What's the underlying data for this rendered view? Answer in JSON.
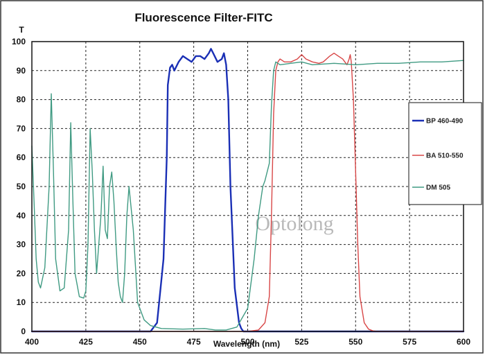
{
  "chart_data": {
    "type": "line",
    "title": "Fluorescence Filter-FITC",
    "xlabel": "Wavelength (nm)",
    "ylabel": "T",
    "xlim": [
      400,
      600
    ],
    "ylim": [
      0,
      100
    ],
    "xticks": [
      "400",
      "425",
      "450",
      "475",
      "500",
      "525",
      "550",
      "575",
      "600"
    ],
    "yticks": [
      "0",
      "10",
      "20",
      "30",
      "40",
      "50",
      "60",
      "70",
      "80",
      "90",
      "100"
    ],
    "grid": true,
    "legend_position": "right",
    "watermark": "Optolong",
    "series": [
      {
        "name": "BP 460-490",
        "color": "#1a2fb5",
        "x": [
          400,
          455,
          458,
          461,
          462.5,
          463,
          464,
          465,
          466,
          468,
          470,
          472,
          474,
          476,
          478,
          480,
          482,
          483,
          484,
          486,
          488,
          489,
          490,
          491,
          492,
          494,
          496,
          497,
          498,
          500,
          600
        ],
        "y": [
          0,
          0,
          3,
          25,
          60,
          85,
          91,
          92,
          90,
          93,
          95,
          94,
          93,
          95,
          95,
          94,
          96,
          97.5,
          96,
          93,
          94,
          96,
          92,
          80,
          50,
          15,
          3,
          1,
          0,
          0,
          0
        ]
      },
      {
        "name": "BA 510-550",
        "color": "#d84646",
        "x": [
          400,
          500,
          505,
          508,
          510,
          511,
          512,
          513,
          514,
          515,
          517,
          520,
          523,
          525,
          527,
          530,
          533,
          535,
          538,
          540,
          542,
          544,
          546,
          547,
          547.5,
          548,
          549,
          550,
          551,
          552,
          554,
          556,
          558,
          560,
          600
        ],
        "y": [
          0,
          0,
          0.5,
          3,
          12,
          40,
          75,
          90,
          93,
          94,
          93,
          93,
          94,
          95.5,
          94,
          93,
          92.5,
          93,
          95,
          96,
          95,
          94,
          92,
          94,
          95.5,
          93,
          80,
          55,
          30,
          12,
          3,
          0.8,
          0.2,
          0,
          0
        ]
      },
      {
        "name": "DM 505",
        "color": "#3f9a82",
        "x": [
          400,
          401,
          402,
          403,
          404,
          406,
          408,
          409,
          410,
          411,
          413,
          415,
          417,
          418,
          419,
          420,
          422,
          424,
          425,
          426,
          427,
          428,
          429,
          430,
          432,
          433,
          434,
          435,
          436,
          437,
          438,
          439,
          440,
          441,
          442,
          443,
          444,
          445,
          447,
          449,
          452,
          455,
          460,
          470,
          480,
          485,
          490,
          495,
          500,
          503,
          505,
          507,
          508,
          510,
          511,
          512,
          513,
          515,
          520,
          525,
          530,
          540,
          550,
          560,
          570,
          580,
          590,
          600
        ],
        "y": [
          64,
          45,
          25,
          17,
          15,
          22,
          50,
          82,
          55,
          25,
          14,
          15,
          35,
          72,
          45,
          20,
          12,
          11.5,
          14,
          30,
          70,
          55,
          35,
          20,
          40,
          57,
          35,
          32,
          50,
          55,
          45,
          30,
          17,
          12,
          10,
          20,
          40,
          50,
          35,
          10,
          4,
          2,
          1,
          0.8,
          1,
          0.5,
          0.5,
          1.5,
          8,
          25,
          40,
          50,
          52,
          58,
          78,
          90,
          93,
          92,
          92.5,
          93,
          92,
          92.5,
          92,
          92.5,
          92.5,
          93,
          93,
          93.5
        ]
      }
    ]
  }
}
